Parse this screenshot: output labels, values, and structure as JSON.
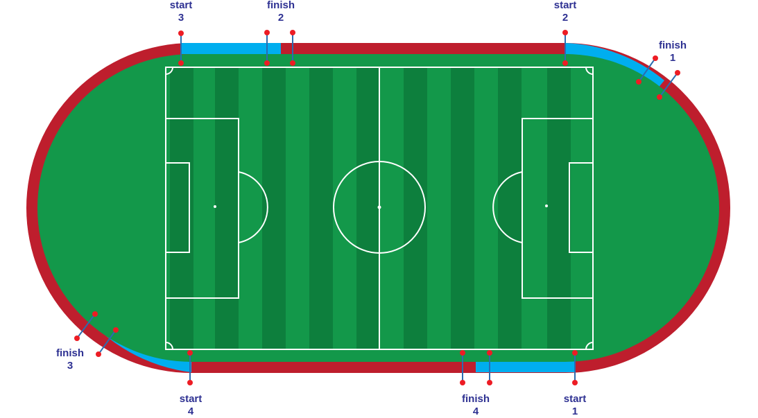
{
  "colors": {
    "track_red": "#be1e2d",
    "track_blue": "#00aeef",
    "grass": "#13984a",
    "stripe_dark": "#0d7f3d",
    "line_white": "#ffffff",
    "marker_red": "#ed1c24",
    "connector": "#2b6cb0",
    "label": "#2e3192"
  },
  "markers": [
    {
      "id": "start-3",
      "lines": [
        "start",
        "3"
      ]
    },
    {
      "id": "finish-2",
      "lines": [
        "finish",
        "2"
      ]
    },
    {
      "id": "start-2",
      "lines": [
        "start",
        "2"
      ]
    },
    {
      "id": "finish-1",
      "lines": [
        "finish",
        "1"
      ]
    },
    {
      "id": "finish-3",
      "lines": [
        "finish",
        "3"
      ]
    },
    {
      "id": "start-4",
      "lines": [
        "start",
        "4"
      ]
    },
    {
      "id": "finish-4",
      "lines": [
        "finish",
        "4"
      ]
    },
    {
      "id": "start-1",
      "lines": [
        "start",
        "1"
      ]
    }
  ]
}
